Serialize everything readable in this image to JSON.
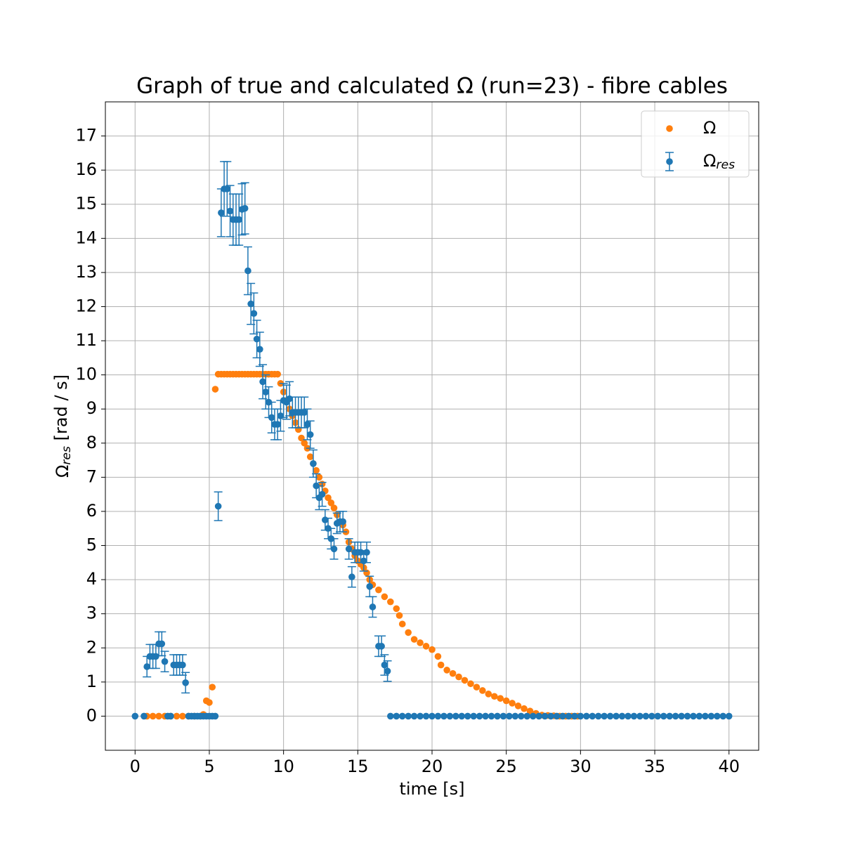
{
  "chart_data": {
    "type": "scatter",
    "title": "Graph of true and calculated Ω (run=23) - fibre cables",
    "x_label": "time [s]",
    "y_label": "Ωres [rad / s]",
    "xlim": [
      -2,
      42
    ],
    "ylim": [
      -1,
      18
    ],
    "xticks": [
      0,
      5,
      10,
      15,
      20,
      25,
      30,
      35,
      40
    ],
    "yticks": [
      0,
      1,
      2,
      3,
      4,
      5,
      6,
      7,
      8,
      9,
      10,
      11,
      12,
      13,
      14,
      15,
      16,
      17
    ],
    "grid": true,
    "legend": "upper right",
    "series": [
      {
        "name": "Ω",
        "color": "#ff7f0e",
        "x": [
          0.8,
          1.2,
          1.6,
          2.0,
          2.4,
          2.8,
          3.2,
          3.6,
          4.0,
          4.4,
          4.6,
          4.8,
          5.0,
          5.2,
          5.4,
          5.6,
          5.8,
          6.0,
          6.2,
          6.4,
          6.6,
          6.8,
          7.0,
          7.2,
          7.4,
          7.6,
          7.8,
          8.0,
          8.2,
          8.4,
          8.6,
          8.8,
          9.0,
          9.2,
          9.4,
          9.6,
          9.8,
          10.0,
          10.2,
          10.4,
          10.6,
          10.8,
          11.0,
          11.2,
          11.4,
          11.6,
          11.8,
          12.0,
          12.2,
          12.4,
          12.6,
          12.8,
          13.0,
          13.2,
          13.4,
          13.6,
          13.8,
          14.0,
          14.2,
          14.4,
          14.6,
          14.8,
          15.0,
          15.2,
          15.4,
          15.6,
          15.8,
          16.0,
          16.4,
          16.8,
          17.2,
          17.6,
          17.8,
          18.0,
          18.4,
          18.8,
          19.2,
          19.6,
          20.0,
          20.4,
          20.6,
          21.0,
          21.4,
          21.8,
          22.2,
          22.6,
          23.0,
          23.4,
          23.8,
          24.2,
          24.6,
          25.0,
          25.4,
          25.8,
          26.2,
          26.6,
          27.0,
          27.4,
          27.8,
          28.2,
          28.6,
          29.0,
          29.4,
          29.8
        ],
        "values": [
          0,
          0,
          0,
          0,
          0,
          0,
          0,
          0,
          0,
          0,
          0.05,
          0.45,
          0.4,
          0.85,
          9.58,
          10.02,
          10.02,
          10.02,
          10.02,
          10.02,
          10.02,
          10.02,
          10.02,
          10.02,
          10.02,
          10.02,
          10.02,
          10.02,
          10.02,
          10.02,
          10.02,
          10.02,
          10.02,
          10.02,
          10.02,
          10.02,
          9.75,
          9.5,
          9.25,
          9.0,
          8.8,
          8.6,
          8.4,
          8.15,
          8.0,
          7.85,
          7.6,
          7.4,
          7.2,
          7.0,
          6.8,
          6.6,
          6.4,
          6.25,
          6.1,
          5.9,
          5.7,
          5.6,
          5.4,
          5.1,
          4.9,
          4.7,
          4.55,
          4.45,
          4.35,
          4.2,
          4.0,
          3.85,
          3.7,
          3.5,
          3.35,
          3.15,
          2.95,
          2.7,
          2.45,
          2.25,
          2.15,
          2.05,
          1.95,
          1.75,
          1.5,
          1.35,
          1.25,
          1.15,
          1.05,
          0.95,
          0.85,
          0.75,
          0.65,
          0.58,
          0.52,
          0.45,
          0.38,
          0.3,
          0.22,
          0.15,
          0.08,
          0.03,
          0.02,
          0.01,
          0,
          0,
          0,
          0
        ]
      },
      {
        "name": "Ωres",
        "color": "#1f77b4",
        "x": [
          0,
          0.6,
          0.8,
          1.0,
          1.2,
          1.4,
          1.6,
          1.8,
          2.0,
          2.2,
          2.4,
          2.6,
          2.8,
          3.0,
          3.2,
          3.4,
          3.6,
          3.8,
          4.0,
          4.2,
          4.4,
          4.6,
          4.8,
          5.0,
          5.2,
          5.4,
          5.6,
          5.8,
          6.0,
          6.2,
          6.4,
          6.6,
          6.8,
          7.0,
          7.2,
          7.4,
          7.6,
          7.8,
          8.0,
          8.2,
          8.4,
          8.6,
          8.8,
          9.0,
          9.2,
          9.4,
          9.6,
          9.8,
          10.0,
          10.2,
          10.4,
          10.6,
          10.8,
          11.0,
          11.2,
          11.4,
          11.6,
          11.8,
          12.0,
          12.2,
          12.4,
          12.6,
          12.8,
          13.0,
          13.2,
          13.4,
          13.6,
          13.8,
          14.0,
          14.4,
          14.6,
          14.8,
          15.0,
          15.2,
          15.4,
          15.6,
          15.8,
          16.0,
          16.4,
          16.6,
          16.8,
          17.0,
          17.2,
          17.6,
          18.0,
          18.4,
          18.8,
          19.2,
          19.6,
          20.0,
          20.4,
          20.8,
          21.2,
          21.6,
          22.0,
          22.4,
          22.8,
          23.2,
          23.6,
          24.0,
          24.4,
          24.8,
          25.2,
          25.6,
          26.0,
          26.4,
          26.8,
          27.2,
          27.6,
          28.0,
          28.4,
          28.8,
          29.2,
          29.6,
          30.0,
          30.4,
          30.8,
          31.2,
          31.6,
          32.0,
          32.4,
          32.8,
          33.2,
          33.6,
          34.0,
          34.4,
          34.8,
          35.2,
          35.6,
          36.0,
          36.4,
          36.8,
          37.2,
          37.6,
          38.0,
          38.4,
          38.8,
          39.2,
          39.6,
          40.0
        ],
        "values": [
          0,
          0,
          1.45,
          1.75,
          1.75,
          1.75,
          2.12,
          2.12,
          1.6,
          0,
          0,
          1.5,
          1.5,
          1.5,
          1.5,
          0.98,
          0,
          0,
          0,
          0,
          0,
          0,
          0,
          0,
          0,
          0,
          6.15,
          14.75,
          15.45,
          15.45,
          14.8,
          14.55,
          14.55,
          14.55,
          14.85,
          14.88,
          13.05,
          12.08,
          11.8,
          11.05,
          10.75,
          9.8,
          9.5,
          9.2,
          8.75,
          8.55,
          8.55,
          8.8,
          9.25,
          9.2,
          9.3,
          8.9,
          8.9,
          8.9,
          8.9,
          8.9,
          8.55,
          8.25,
          7.4,
          6.75,
          6.4,
          6.5,
          5.75,
          5.5,
          5.2,
          4.9,
          5.65,
          5.7,
          5.7,
          4.9,
          4.08,
          4.8,
          4.8,
          4.8,
          4.55,
          4.8,
          3.8,
          3.2,
          2.05,
          2.05,
          1.5,
          1.32,
          0,
          0,
          0,
          0,
          0,
          0,
          0,
          0,
          0,
          0,
          0,
          0,
          0,
          0,
          0,
          0,
          0,
          0,
          0,
          0,
          0,
          0,
          0,
          0,
          0,
          0,
          0,
          0,
          0,
          0,
          0,
          0,
          0,
          0,
          0,
          0,
          0,
          0,
          0,
          0,
          0,
          0,
          0,
          0,
          0,
          0,
          0,
          0,
          0,
          0,
          0,
          0,
          0,
          0,
          0,
          0,
          0,
          0
        ],
        "errors": [
          0,
          0,
          0.3,
          0.35,
          0.35,
          0.35,
          0.35,
          0.35,
          0.3,
          0,
          0,
          0.3,
          0.3,
          0.3,
          0.3,
          0.3,
          0,
          0,
          0,
          0,
          0,
          0,
          0,
          0,
          0,
          0,
          0.42,
          0.7,
          0.8,
          0.8,
          0.75,
          0.75,
          0.75,
          0.75,
          0.75,
          0.75,
          0.7,
          0.6,
          0.6,
          0.55,
          0.5,
          0.5,
          0.5,
          0.45,
          0.45,
          0.45,
          0.45,
          0.45,
          0.5,
          0.5,
          0.5,
          0.45,
          0.45,
          0.45,
          0.45,
          0.45,
          0.45,
          0.4,
          0.4,
          0.35,
          0.35,
          0.35,
          0.3,
          0.3,
          0.3,
          0.3,
          0.3,
          0.3,
          0.3,
          0.3,
          0.3,
          0.3,
          0.3,
          0.3,
          0.3,
          0.3,
          0.3,
          0.3,
          0.3,
          0.3,
          0.3,
          0.3,
          0,
          0,
          0,
          0,
          0,
          0,
          0,
          0,
          0,
          0,
          0,
          0,
          0,
          0,
          0,
          0,
          0,
          0,
          0,
          0,
          0,
          0,
          0,
          0,
          0,
          0,
          0,
          0,
          0,
          0,
          0,
          0,
          0,
          0,
          0,
          0,
          0,
          0,
          0,
          0,
          0,
          0,
          0,
          0,
          0,
          0,
          0,
          0,
          0,
          0,
          0,
          0,
          0,
          0,
          0,
          0,
          0,
          0
        ]
      }
    ]
  }
}
